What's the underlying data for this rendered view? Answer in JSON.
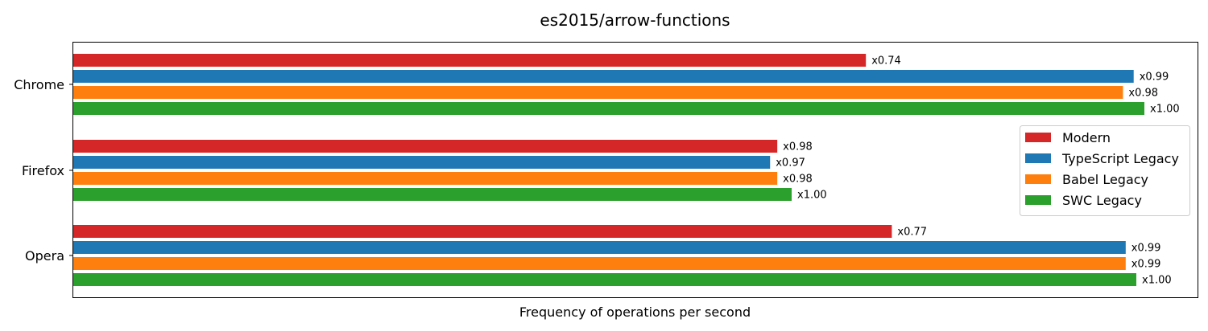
{
  "chart_data": {
    "type": "bar",
    "orientation": "horizontal",
    "title": "es2015/arrow-functions",
    "xlabel": "Frequency of operations per second",
    "ylabel": "",
    "categories": [
      "Chrome",
      "Firefox",
      "Opera"
    ],
    "x_ticks_shown": false,
    "grid": false,
    "legend_position": "center-right",
    "series": [
      {
        "name": "Modern",
        "color": "#d62728",
        "values": [
          0.74,
          0.98,
          0.77
        ],
        "labels": [
          "x0.74",
          "x0.98",
          "x0.77"
        ]
      },
      {
        "name": "TypeScript Legacy",
        "color": "#1f77b4",
        "values": [
          0.99,
          0.97,
          0.99
        ],
        "labels": [
          "x0.99",
          "x0.97",
          "x0.99"
        ]
      },
      {
        "name": "Babel Legacy",
        "color": "#ff7f0e",
        "values": [
          0.98,
          0.98,
          0.99
        ],
        "labels": [
          "x0.98",
          "x0.98",
          "x0.99"
        ]
      },
      {
        "name": "SWC Legacy",
        "color": "#2ca02c",
        "values": [
          1.0,
          1.0,
          1.0
        ],
        "labels": [
          "x1.00",
          "x1.00",
          "x1.00"
        ]
      }
    ],
    "category_scale": [
      1330,
      892,
      1320
    ]
  }
}
